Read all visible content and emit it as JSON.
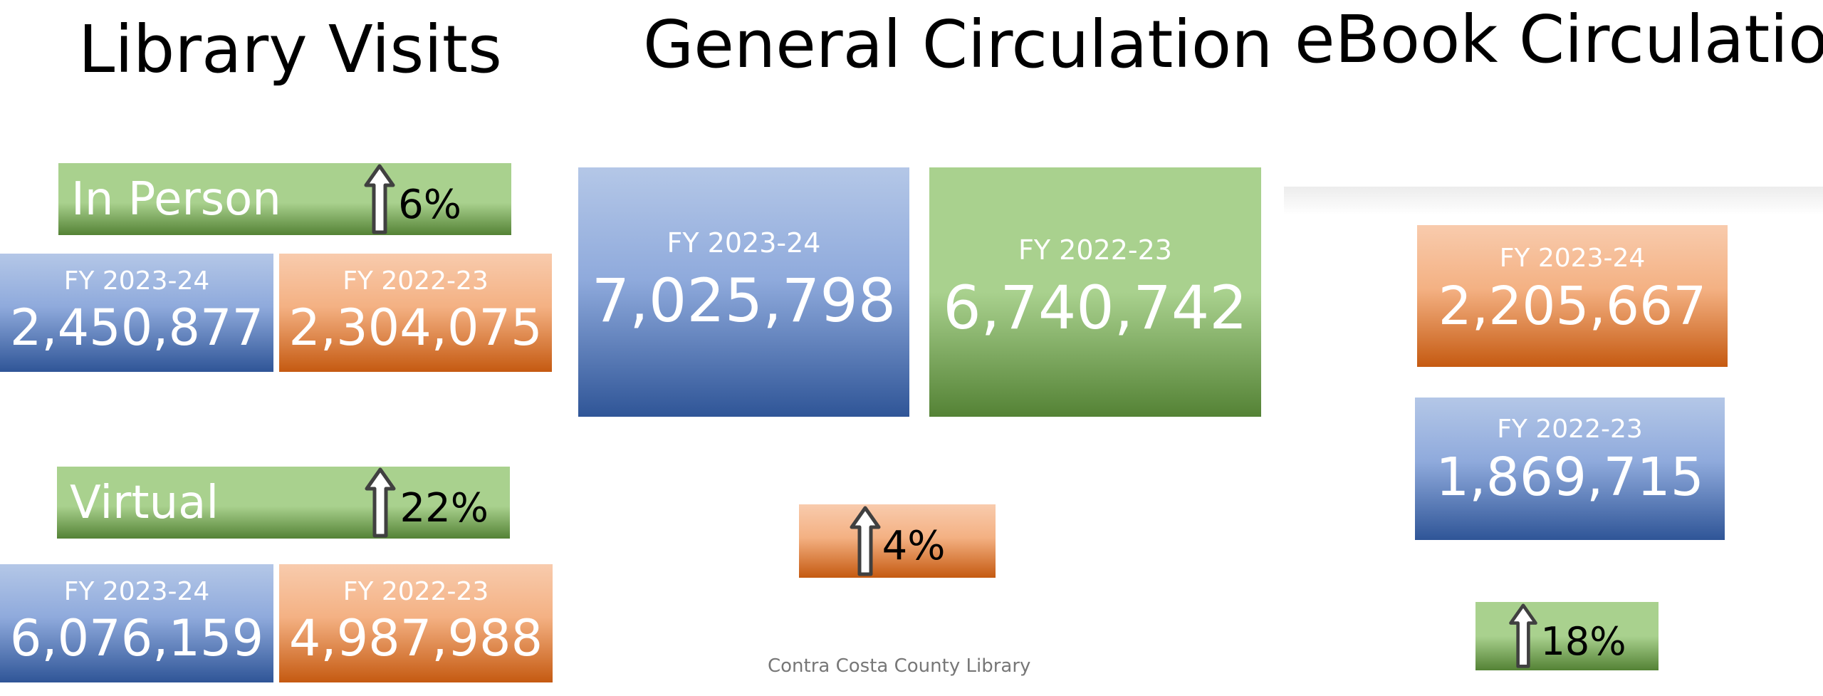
{
  "titles": {
    "visits": "Library Visits",
    "general": "General Circulation",
    "ebook": "eBook Circulation"
  },
  "visits": {
    "in_person": {
      "label": "In Person",
      "change": "6%",
      "current": {
        "fy": "FY 2023-24",
        "value": "2,450,877"
      },
      "previous": {
        "fy": "FY 2022-23",
        "value": "2,304,075"
      }
    },
    "virtual": {
      "label": "Virtual",
      "change": "22%",
      "current": {
        "fy": "FY 2023-24",
        "value": "6,076,159"
      },
      "previous": {
        "fy": "FY 2022-23",
        "value": "4,987,988"
      }
    }
  },
  "general": {
    "current": {
      "fy": "FY 2023-24",
      "value": "7,025,798"
    },
    "previous": {
      "fy": "FY 2022-23",
      "value": "6,740,742"
    },
    "change": "4%"
  },
  "ebook": {
    "current": {
      "fy": "FY 2023-24",
      "value": "2,205,667"
    },
    "previous": {
      "fy": "FY 2022-23",
      "value": "1,869,715"
    },
    "change": "18%"
  },
  "footer": "Contra Costa County Library",
  "icons": {
    "increase": "up-arrow-icon"
  },
  "colors": {
    "green": "#a9d18e",
    "blue": "#8faadc",
    "orange": "#f4b183",
    "text_dark": "#000000"
  }
}
